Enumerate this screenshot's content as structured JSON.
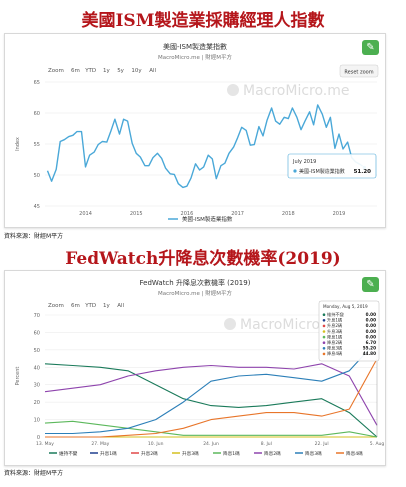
{
  "sections": {
    "ism_title": "美國ISM製造業採購經理人指數",
    "fed_title": "FedWatch升降息次數機率(2019)",
    "source_label": "資料來源：財經M平方"
  },
  "ism_chart": {
    "title": "美國-ISM製造業指數",
    "subtitle": "MacroMicro.me | 財經M平方",
    "watermark": "MacroMicro.me",
    "zoom_label": "Zoom",
    "zoom_buttons": [
      "6m",
      "YTD",
      "1y",
      "5y",
      "10y",
      "All"
    ],
    "reset_zoom": "Reset zoom",
    "tooltip_date": "July 2019",
    "tooltip_label": "美國-ISM製造業指數",
    "tooltip_value": "51.20",
    "legend_label": "美國-ISM製造業指數",
    "series_color": "#4aa8d8"
  },
  "fed_chart": {
    "title": "FedWatch 升降息次數機率 (2019)",
    "subtitle": "MacroMicro.me | 財經M平方",
    "watermark": "MacroMicro",
    "zoom_label": "Zoom",
    "zoom_buttons": [
      "6m",
      "YTD",
      "1y",
      "All"
    ],
    "tooltip_date": "Monday, Aug 5, 2019",
    "tooltip_rows": [
      {
        "label": "維持不變",
        "value": "0.00",
        "color": "#1a7a5a"
      },
      {
        "label": "升息1碼",
        "value": "0.00",
        "color": "#1f3f8f"
      },
      {
        "label": "升息2碼",
        "value": "0.00",
        "color": "#e04848"
      },
      {
        "label": "升息3碼",
        "value": "0.00",
        "color": "#d4c020"
      },
      {
        "label": "降息1碼",
        "value": "0.00",
        "color": "#5cb85c"
      },
      {
        "label": "降息2碼",
        "value": "6.70",
        "color": "#8e44ad"
      },
      {
        "label": "降息3碼",
        "value": "55.20",
        "color": "#2c7fb8"
      },
      {
        "label": "降息4碼",
        "value": "44.80",
        "color": "#e8752a"
      }
    ]
  },
  "chart_data": [
    {
      "type": "line",
      "title": "美國-ISM製造業指數",
      "ylabel": "Index",
      "ylim": [
        45,
        65
      ],
      "xlim": [
        2013.2,
        2019.75
      ],
      "yticks": [
        45,
        50,
        55,
        60,
        65
      ],
      "xticks": [
        {
          "label": "2014",
          "x": 2014
        },
        {
          "label": "2015",
          "x": 2015
        },
        {
          "label": "2016",
          "x": 2016
        },
        {
          "label": "2017",
          "x": 2017
        },
        {
          "label": "2018",
          "x": 2018
        },
        {
          "label": "2019",
          "x": 2019
        }
      ],
      "grid": true,
      "legend": "bottom",
      "series": [
        {
          "name": "美國-ISM製造業指數",
          "x": [
            2013.25,
            2013.33,
            2013.42,
            2013.5,
            2013.58,
            2013.67,
            2013.75,
            2013.83,
            2013.92,
            2014.0,
            2014.08,
            2014.17,
            2014.25,
            2014.33,
            2014.42,
            2014.5,
            2014.58,
            2014.67,
            2014.75,
            2014.83,
            2014.92,
            2015.0,
            2015.08,
            2015.17,
            2015.25,
            2015.33,
            2015.42,
            2015.5,
            2015.58,
            2015.67,
            2015.75,
            2015.83,
            2015.92,
            2016.0,
            2016.08,
            2016.17,
            2016.25,
            2016.33,
            2016.42,
            2016.5,
            2016.58,
            2016.67,
            2016.75,
            2016.83,
            2016.92,
            2017.0,
            2017.08,
            2017.17,
            2017.25,
            2017.33,
            2017.42,
            2017.5,
            2017.58,
            2017.67,
            2017.75,
            2017.83,
            2017.92,
            2018.0,
            2018.08,
            2018.17,
            2018.25,
            2018.33,
            2018.42,
            2018.5,
            2018.58,
            2018.67,
            2018.75,
            2018.83,
            2018.92,
            2019.0,
            2019.08,
            2019.17,
            2019.25,
            2019.33,
            2019.42,
            2019.5
          ],
          "values": [
            50.7,
            49.0,
            50.9,
            55.4,
            55.7,
            56.2,
            56.4,
            57.0,
            57.0,
            51.3,
            53.2,
            53.7,
            54.9,
            55.4,
            55.3,
            57.1,
            59.0,
            56.6,
            59.0,
            58.7,
            55.1,
            53.5,
            52.9,
            51.5,
            51.5,
            52.8,
            53.5,
            52.7,
            51.1,
            50.2,
            50.1,
            48.6,
            48.0,
            48.2,
            49.5,
            51.8,
            50.8,
            51.3,
            53.2,
            52.6,
            49.4,
            51.5,
            51.9,
            53.5,
            54.5,
            56.0,
            57.7,
            57.2,
            54.8,
            54.9,
            57.8,
            56.3,
            58.8,
            60.8,
            58.7,
            58.2,
            59.3,
            59.1,
            60.8,
            59.3,
            57.3,
            58.7,
            60.2,
            58.1,
            61.3,
            59.8,
            57.7,
            59.3,
            54.3,
            56.6,
            54.2,
            55.3,
            52.8,
            52.1,
            51.7,
            51.2
          ]
        }
      ]
    },
    {
      "type": "line",
      "title": "FedWatch 升降息次數機率 (2019)",
      "ylabel": "Percent",
      "ylim": [
        0,
        70
      ],
      "yticks": [
        0,
        10,
        20,
        30,
        40,
        50,
        60,
        70
      ],
      "categories": [
        "13. May",
        "20. May",
        "27. May",
        "3. Jun",
        "10. Jun",
        "17. Jun",
        "24. Jun",
        "1. Jul",
        "8. Jul",
        "15. Jul",
        "22. Jul",
        "29. Jul",
        "5. Aug"
      ],
      "xtick_labels": [
        {
          "label": "13. May",
          "i": 0
        },
        {
          "label": "27. May",
          "i": 2
        },
        {
          "label": "10. Jun",
          "i": 4
        },
        {
          "label": "24. Jun",
          "i": 6
        },
        {
          "label": "8. Jul",
          "i": 8
        },
        {
          "label": "22. Jul",
          "i": 10
        },
        {
          "label": "5. Aug",
          "i": 12
        }
      ],
      "grid": true,
      "legend": "bottom",
      "series": [
        {
          "name": "維持不變",
          "color": "#1a7a5a",
          "values": [
            42,
            41,
            40,
            38,
            30,
            22,
            18,
            17,
            18,
            20,
            22,
            14,
            0
          ]
        },
        {
          "name": "升息1碼",
          "color": "#1f3f8f",
          "values": [
            0,
            0,
            0,
            0,
            0,
            0,
            0,
            0,
            0,
            0,
            0,
            0,
            0
          ]
        },
        {
          "name": "升息2碼",
          "color": "#e04848",
          "values": [
            0,
            0,
            0,
            0,
            0,
            0,
            0,
            0,
            0,
            0,
            0,
            0,
            0
          ]
        },
        {
          "name": "升息3碼",
          "color": "#d4c020",
          "values": [
            0,
            0,
            0,
            0,
            0,
            0,
            0,
            0,
            0,
            0,
            0,
            0,
            0
          ]
        },
        {
          "name": "降息1碼",
          "color": "#5cb85c",
          "values": [
            8,
            9,
            7,
            5,
            3,
            1,
            1,
            1,
            1,
            1,
            1,
            3,
            0
          ]
        },
        {
          "name": "降息2碼",
          "color": "#8e44ad",
          "values": [
            26,
            28,
            30,
            35,
            38,
            40,
            41,
            40,
            40,
            39,
            42,
            35,
            6.7
          ]
        },
        {
          "name": "降息3碼",
          "color": "#2c7fb8",
          "values": [
            2,
            2,
            3,
            5,
            10,
            20,
            32,
            35,
            36,
            34,
            32,
            38,
            55.2
          ]
        },
        {
          "name": "降息4碼",
          "color": "#e8752a",
          "values": [
            0,
            0,
            0,
            1,
            2,
            5,
            10,
            12,
            14,
            14,
            12,
            16,
            44.8
          ]
        }
      ]
    }
  ]
}
